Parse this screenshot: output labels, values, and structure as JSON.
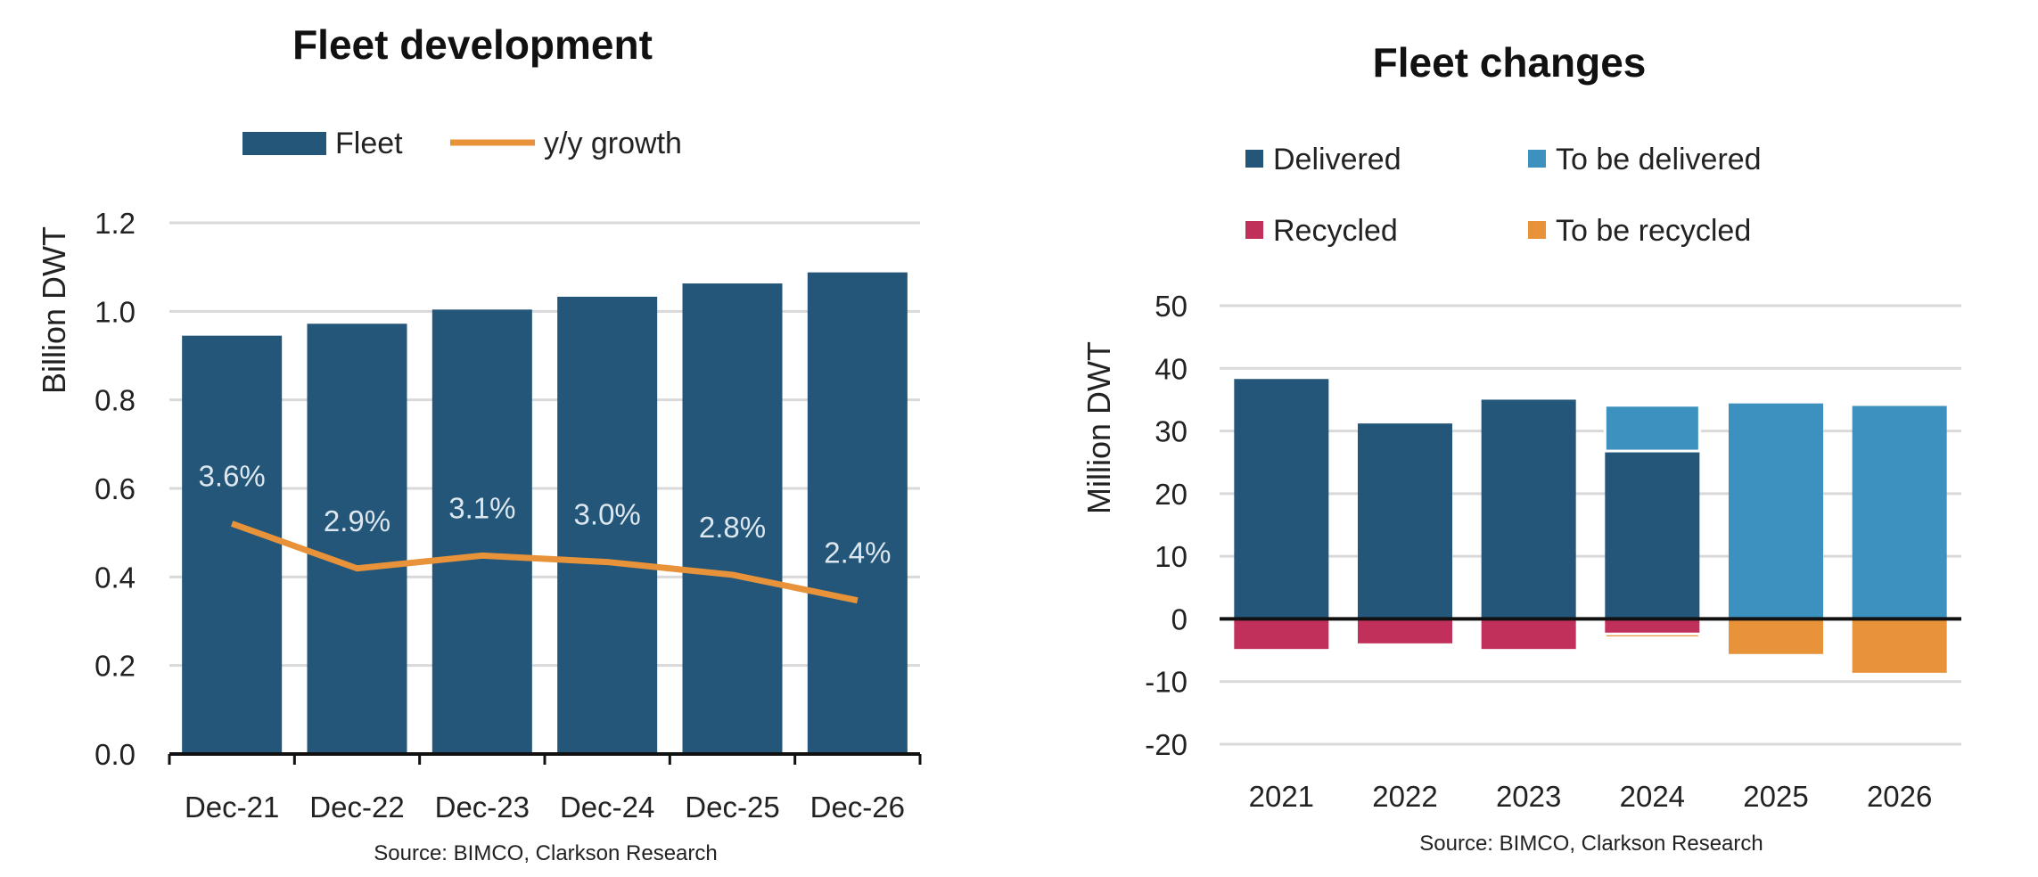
{
  "colors": {
    "fleet": "#235678",
    "growth": "#E8923A",
    "delivered": "#235678",
    "to_be_delivered": "#3C91BE",
    "recycled": "#C0305A",
    "to_be_recycled": "#E8923A",
    "grid": "#D9D9D9"
  },
  "chart_data": [
    {
      "type": "bar",
      "title": "Fleet development",
      "ylabel": "Billion DWT",
      "xlabel": "",
      "categories": [
        "Dec-21",
        "Dec-22",
        "Dec-23",
        "Dec-24",
        "Dec-25",
        "Dec-26"
      ],
      "series": [
        {
          "name": "Fleet",
          "type": "bar",
          "values": [
            0.945,
            0.972,
            1.004,
            1.033,
            1.063,
            1.088
          ]
        },
        {
          "name": "y/y growth",
          "type": "line",
          "values": [
            3.6,
            2.9,
            3.1,
            3.0,
            2.8,
            2.4
          ],
          "labels": [
            "3.6%",
            "2.9%",
            "3.1%",
            "3.0%",
            "2.8%",
            "2.4%"
          ]
        }
      ],
      "ylim": [
        0,
        1.2
      ],
      "yticks": [
        "0.0",
        "0.2",
        "0.4",
        "0.6",
        "0.8",
        "1.0",
        "1.2"
      ],
      "grid": true,
      "legend_position": "top",
      "source": "Source: BIMCO, Clarkson Research"
    },
    {
      "type": "bar",
      "title": "Fleet changes",
      "ylabel": "Million DWT",
      "xlabel": "",
      "stacked": true,
      "categories": [
        "2021",
        "2022",
        "2023",
        "2024",
        "2025",
        "2026"
      ],
      "series": [
        {
          "name": "Delivered",
          "values": [
            38.3,
            31.2,
            35.0,
            26.8,
            0,
            0
          ]
        },
        {
          "name": "To be delivered",
          "values": [
            0,
            0,
            0,
            7.3,
            34.4,
            34.0
          ]
        },
        {
          "name": "Recycled",
          "values": [
            -4.8,
            -3.9,
            -4.8,
            -2.4,
            0,
            0
          ]
        },
        {
          "name": "To be recycled",
          "values": [
            0,
            0,
            0,
            -0.6,
            -5.6,
            -8.6
          ]
        }
      ],
      "ylim": [
        -20,
        50
      ],
      "yticks": [
        "-20",
        "-10",
        "0",
        "10",
        "20",
        "30",
        "40",
        "50"
      ],
      "grid": true,
      "legend_position": "top",
      "source": "Source: BIMCO, Clarkson Research"
    }
  ]
}
